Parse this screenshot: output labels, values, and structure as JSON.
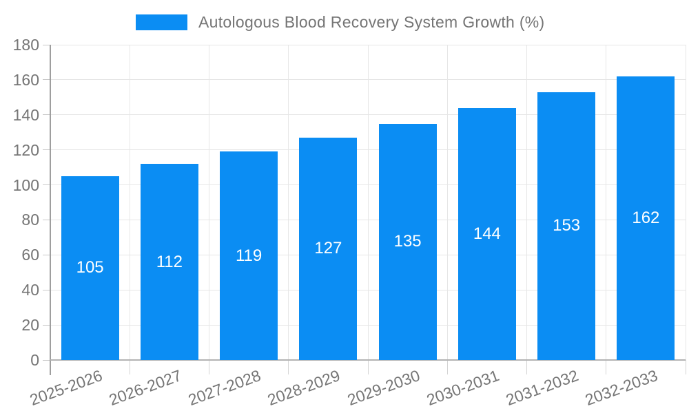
{
  "legend": {
    "label": "Autologous Blood Recovery System Growth (%)"
  },
  "chart_data": {
    "type": "bar",
    "title": "Autologous Blood Recovery System Growth (%)",
    "categories": [
      "2025-2026",
      "2026-2027",
      "2027-2028",
      "2028-2029",
      "2029-2030",
      "2030-2031",
      "2031-2032",
      "2032-2033"
    ],
    "series": [
      {
        "name": "Autologous Blood Recovery System Growth (%)",
        "values": [
          105,
          112,
          119,
          127,
          135,
          144,
          153,
          162
        ]
      }
    ],
    "value_labels": [
      "105",
      "112",
      "119",
      "127",
      "135",
      "144",
      "153",
      "162"
    ],
    "xlabel": "",
    "ylabel": "",
    "ylim": [
      0,
      180
    ],
    "yticks": [
      0,
      20,
      40,
      60,
      80,
      100,
      120,
      140,
      160,
      180
    ],
    "grid": true,
    "legend_position": "top",
    "x_label_rotation_deg": -20,
    "colors": {
      "bar": "#0b8df3",
      "bar_value_text": "#ffffff",
      "axis_text": "#757575",
      "gridline": "#e6e6e6",
      "y_axis_line": "#9e9e9e",
      "x_axis_line": "#b3b3b3"
    }
  }
}
